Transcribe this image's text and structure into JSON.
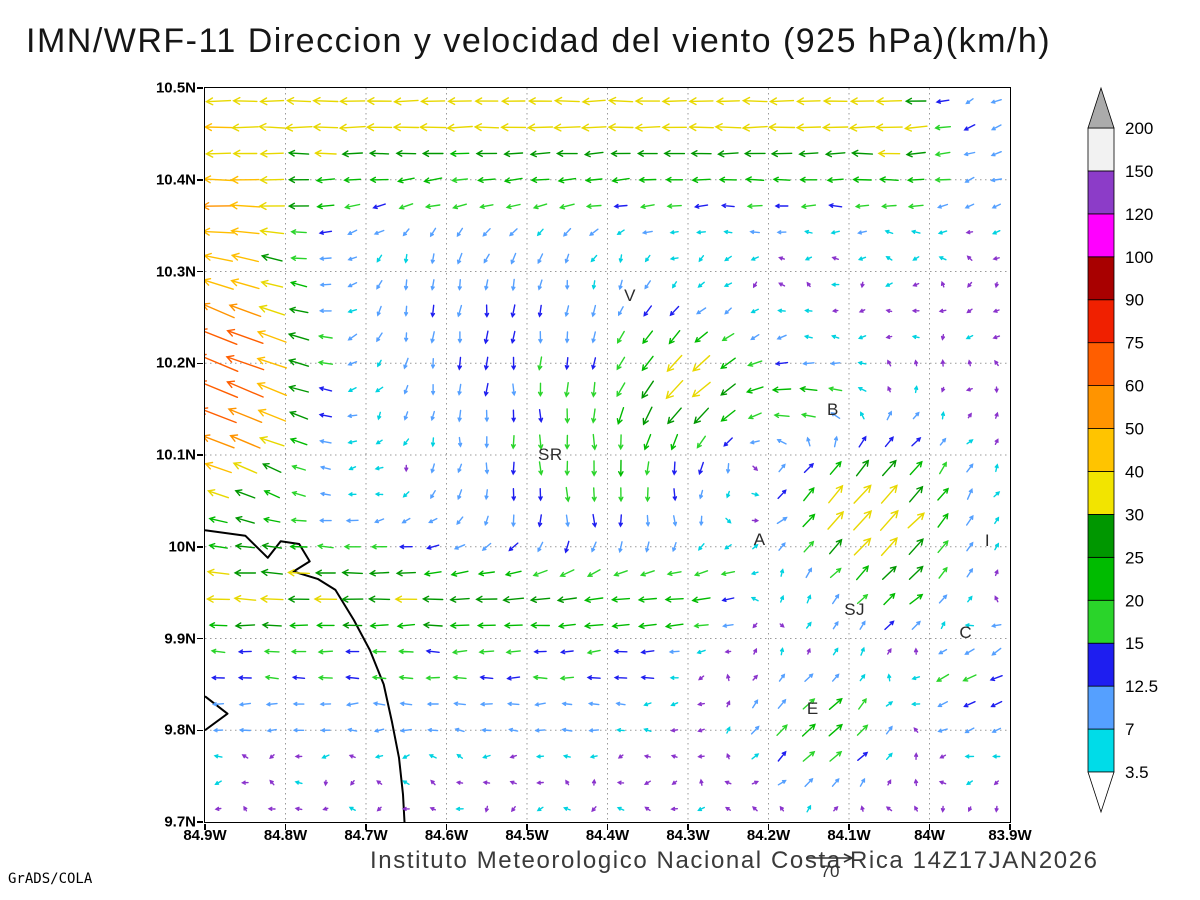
{
  "title": "IMN/WRF-11 Direccion y velocidad del viento (925 hPa)(km/h)",
  "credit": "GrADS/COLA",
  "caption": "Instituto Meteorologico Nacional Costa Rica 14Z17JAN2026",
  "reference_vector": {
    "label": "70",
    "value_kmh": 70
  },
  "axes": {
    "lon_ticks": [
      {
        "v": -84.9,
        "label": "84.9W"
      },
      {
        "v": -84.8,
        "label": "84.8W"
      },
      {
        "v": -84.7,
        "label": "84.7W"
      },
      {
        "v": -84.6,
        "label": "84.6W"
      },
      {
        "v": -84.5,
        "label": "84.5W"
      },
      {
        "v": -84.4,
        "label": "84.4W"
      },
      {
        "v": -84.3,
        "label": "84.3W"
      },
      {
        "v": -84.2,
        "label": "84.2W"
      },
      {
        "v": -84.1,
        "label": "84.1W"
      },
      {
        "v": -84.0,
        "label": "84W"
      },
      {
        "v": -83.9,
        "label": "83.9W"
      }
    ],
    "lat_ticks": [
      {
        "v": 10.5,
        "label": "10.5N"
      },
      {
        "v": 10.4,
        "label": "10.4N"
      },
      {
        "v": 10.3,
        "label": "10.3N"
      },
      {
        "v": 10.2,
        "label": "10.2N"
      },
      {
        "v": 10.1,
        "label": "10.1N"
      },
      {
        "v": 10.0,
        "label": "10N"
      },
      {
        "v": 9.9,
        "label": "9.9N"
      },
      {
        "v": 9.8,
        "label": "9.8N"
      },
      {
        "v": 9.7,
        "label": "9.7N"
      }
    ]
  },
  "colorbar": {
    "levels": [
      3.5,
      7,
      12.5,
      15,
      20,
      25,
      30,
      40,
      50,
      60,
      75,
      90,
      100,
      120,
      150,
      200
    ],
    "band_colors": [
      "#00dce8",
      "#55a0ff",
      "#1e1ef0",
      "#2ad42a",
      "#00bb00",
      "#009700",
      "#f2e400",
      "#ffc400",
      "#ff9400",
      "#ff5e00",
      "#f02000",
      "#a80000",
      "#ff00ff",
      "#8c3cc8",
      "#f2f2f2"
    ],
    "under_color": "#ffffff",
    "over_color": "#ababab"
  },
  "chart_data": {
    "type": "vector_field",
    "title": "IMN/WRF-11 Direccion y velocidad del viento (925 hPa)(km/h)",
    "units": "km/h",
    "pressure_level": "925 hPa",
    "model": "IMN/WRF-11",
    "valid_time": "14Z17JAN2026",
    "lon_range": [
      -84.9,
      -83.9
    ],
    "lat_range": [
      9.7,
      10.5
    ],
    "grid": {
      "cols": 30,
      "rows": 28
    },
    "speed_levels": [
      3.5,
      7,
      12.5,
      15,
      20,
      25,
      30,
      40,
      50,
      60,
      75,
      90,
      100,
      120,
      150,
      200
    ],
    "arrow_palette": [
      {
        "max": 3.5,
        "color": "#8a33cc"
      },
      {
        "max": 7,
        "color": "#00d2e0"
      },
      {
        "max": 12.5,
        "color": "#55a0ff"
      },
      {
        "max": 15,
        "color": "#1e1ef0"
      },
      {
        "max": 20,
        "color": "#2ad42a"
      },
      {
        "max": 25,
        "color": "#00bb00"
      },
      {
        "max": 30,
        "color": "#009700"
      },
      {
        "max": 40,
        "color": "#e8d800"
      },
      {
        "max": 50,
        "color": "#ffbe00"
      },
      {
        "max": 60,
        "color": "#ff9400"
      },
      {
        "max": 75,
        "color": "#ff5e00"
      },
      {
        "max": 90,
        "color": "#f02000"
      },
      {
        "max": 100,
        "color": "#a80000"
      },
      {
        "max": 120,
        "color": "#ff00ff"
      },
      {
        "max": 150,
        "color": "#8c3cc8"
      },
      {
        "max": 9999,
        "color": "#e8e8e8"
      }
    ],
    "noise_kmh": 2.2,
    "features": [
      {
        "type": "uniform",
        "u": -2,
        "v": 0
      },
      {
        "type": "jet",
        "lat": 10.47,
        "sigma": 0.035,
        "u": -36,
        "v": 0,
        "lon1": -83.96
      },
      {
        "type": "jet",
        "lat": 10.39,
        "sigma": 0.03,
        "u": -16,
        "v": 0,
        "lon1": -83.94
      },
      {
        "type": "gauss",
        "lon": -84.88,
        "lat": 10.19,
        "slon": 0.075,
        "slat": 0.1,
        "u": -62,
        "v": 26
      },
      {
        "type": "gauss",
        "lon": -84.88,
        "lat": 10.36,
        "slon": 0.06,
        "slat": 0.04,
        "u": -24,
        "v": -4
      },
      {
        "type": "gauss",
        "lon": -84.55,
        "lat": 10.25,
        "slon": 0.14,
        "slat": 0.09,
        "u": 0,
        "v": -12
      },
      {
        "type": "gauss",
        "lon": -84.42,
        "lat": 10.08,
        "slon": 0.12,
        "slat": 0.08,
        "u": 4,
        "v": -17
      },
      {
        "type": "gauss",
        "lon": -84.3,
        "lat": 10.18,
        "slon": 0.06,
        "slat": 0.05,
        "u": -24,
        "v": -18
      },
      {
        "type": "gauss",
        "lon": -84.16,
        "lat": 10.16,
        "slon": 0.05,
        "slat": 0.035,
        "u": -22,
        "v": 2
      },
      {
        "type": "gauss",
        "lon": -84.07,
        "lat": 10.04,
        "slon": 0.08,
        "slat": 0.06,
        "u": 29,
        "v": 29
      },
      {
        "type": "gauss",
        "lon": -84.75,
        "lat": 9.995,
        "slon": 0.15,
        "slat": 0.03,
        "u": -13,
        "v": 0
      },
      {
        "type": "jet",
        "lat": 9.965,
        "sigma": 0.022,
        "u": -15,
        "v": 0,
        "lon1": -84.18
      },
      {
        "type": "jet",
        "lat": 9.925,
        "sigma": 0.02,
        "u": -23,
        "v": 0,
        "lon1": -84.22
      },
      {
        "type": "jet",
        "lat": 9.87,
        "sigma": 0.018,
        "u": -15,
        "v": 0,
        "lon1": -84.28
      },
      {
        "type": "jet",
        "lat": 9.815,
        "sigma": 0.022,
        "u": -9,
        "v": 0,
        "lon1": -84.33
      },
      {
        "type": "gauss",
        "lon": -84.13,
        "lat": 9.8,
        "slon": 0.06,
        "slat": 0.045,
        "u": 22,
        "v": 18
      },
      {
        "type": "gauss",
        "lon": -83.96,
        "lat": 9.86,
        "slon": 0.06,
        "slat": 0.05,
        "u": -14,
        "v": -9
      },
      {
        "type": "gauss",
        "lon": -84.02,
        "lat": 9.93,
        "slon": 0.05,
        "slat": 0.04,
        "u": 14,
        "v": 10
      },
      {
        "type": "gauss",
        "lon": -83.92,
        "lat": 10.44,
        "slon": 0.07,
        "slat": 0.05,
        "u": -9,
        "v": -5
      }
    ],
    "stations": [
      {
        "label": "V",
        "lon": -84.372,
        "lat": 10.272
      },
      {
        "label": "B",
        "lon": -84.12,
        "lat": 10.148
      },
      {
        "label": "SR",
        "lon": -84.471,
        "lat": 10.099
      },
      {
        "label": "A",
        "lon": -84.211,
        "lat": 10.006
      },
      {
        "label": "SJ",
        "lon": -84.093,
        "lat": 9.93
      },
      {
        "label": "C",
        "lon": -83.955,
        "lat": 9.905
      },
      {
        "label": "E",
        "lon": -84.145,
        "lat": 9.822
      },
      {
        "label": "I",
        "lon": -83.928,
        "lat": 10.005
      }
    ],
    "coastline": [
      [
        [
          -84.9,
          10.018
        ],
        [
          -84.85,
          10.012
        ],
        [
          -84.822,
          9.988
        ],
        [
          -84.806,
          10.006
        ],
        [
          -84.783,
          10.003
        ],
        [
          -84.77,
          9.984
        ],
        [
          -84.79,
          9.973
        ],
        [
          -84.76,
          9.965
        ],
        [
          -84.738,
          9.953
        ],
        [
          -84.715,
          9.92
        ],
        [
          -84.695,
          9.887
        ],
        [
          -84.678,
          9.85
        ],
        [
          -84.668,
          9.81
        ],
        [
          -84.659,
          9.77
        ],
        [
          -84.654,
          9.73
        ],
        [
          -84.652,
          9.698
        ]
      ],
      [
        [
          -84.9,
          9.837
        ],
        [
          -84.872,
          9.818
        ],
        [
          -84.9,
          9.8
        ]
      ]
    ]
  }
}
